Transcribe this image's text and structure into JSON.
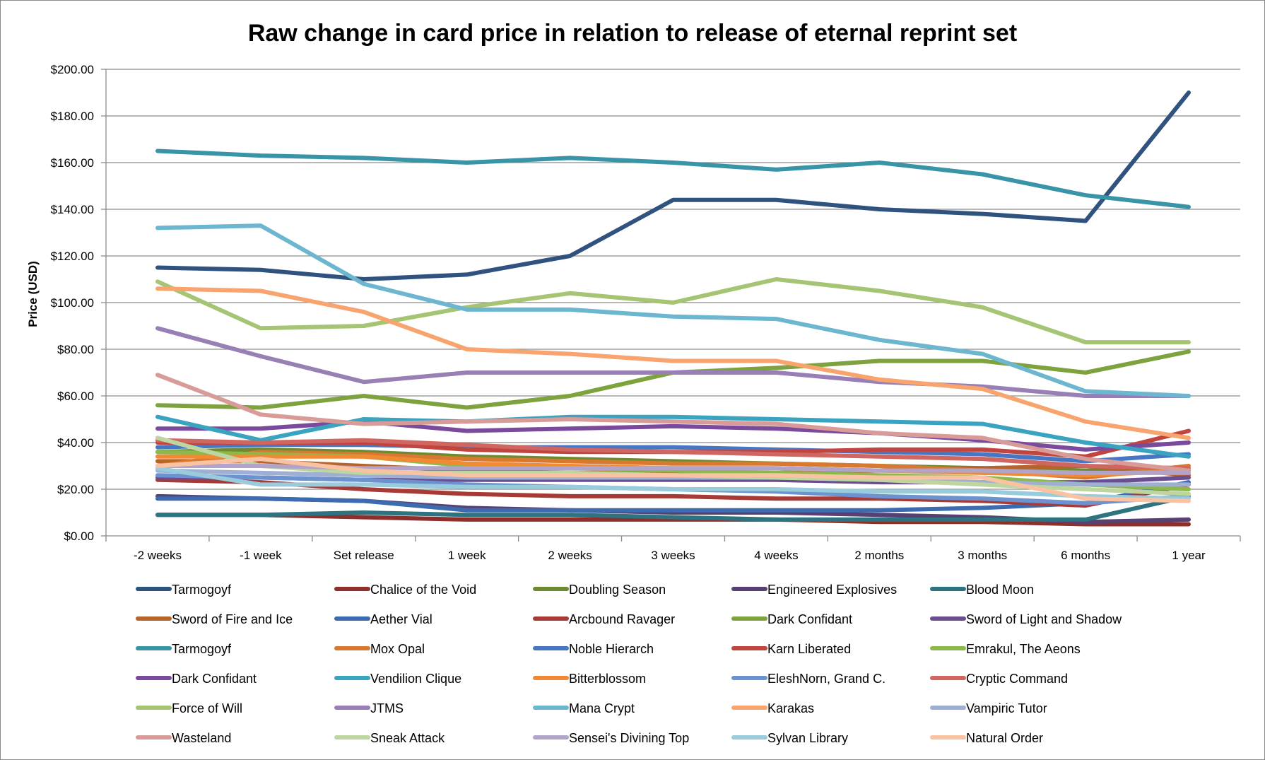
{
  "chart_data": {
    "type": "line",
    "title": "Raw change in card price in relation to release of eternal reprint set",
    "xlabel": "",
    "ylabel": "Price (USD)",
    "ylim": [
      0,
      200
    ],
    "y_ticks": [
      "$0.00",
      "$20.00",
      "$40.00",
      "$60.00",
      "$80.00",
      "$100.00",
      "$120.00",
      "$140.00",
      "$160.00",
      "$180.00",
      "$200.00"
    ],
    "grid": "horizontal",
    "legend_position": "bottom",
    "categories": [
      "-2 weeks",
      "-1 week",
      "Set release",
      "1 week",
      "2 weeks",
      "3 weeks",
      "4 weeks",
      "2 months",
      "3 months",
      "6 months",
      "1 year"
    ],
    "series": [
      {
        "name": "Tarmogoyf",
        "color": "#2f527f",
        "values": [
          115,
          114,
          110,
          112,
          120,
          144,
          144,
          140,
          138,
          135,
          190
        ]
      },
      {
        "name": "Chalice of the Void",
        "color": "#8e2f2c",
        "values": [
          9,
          9,
          8,
          7,
          7,
          7,
          7,
          6,
          6,
          5,
          5
        ]
      },
      {
        "name": "Doubling Season",
        "color": "#6e8a31",
        "values": [
          36,
          37,
          36,
          34,
          33,
          32,
          31,
          30,
          29,
          28,
          28
        ]
      },
      {
        "name": "Engineered Explosives",
        "color": "#574173",
        "values": [
          17,
          16,
          15,
          12,
          11,
          10,
          10,
          9,
          8,
          6,
          7
        ]
      },
      {
        "name": "Blood Moon",
        "color": "#2e7380",
        "values": [
          9,
          9,
          10,
          9,
          9,
          8,
          7,
          7,
          7,
          7,
          17
        ]
      },
      {
        "name": "Sword of Fire and Ice",
        "color": "#b5652b",
        "values": [
          32,
          32,
          30,
          28,
          27,
          27,
          27,
          28,
          29,
          30,
          26
        ]
      },
      {
        "name": "Aether Vial",
        "color": "#3d6bb0",
        "values": [
          16,
          16,
          15,
          11,
          11,
          11,
          11,
          11,
          12,
          14,
          23
        ]
      },
      {
        "name": "Arcbound Ravager",
        "color": "#a83a36",
        "values": [
          24,
          23,
          20,
          18,
          17,
          17,
          16,
          16,
          15,
          13,
          22
        ]
      },
      {
        "name": "Dark Confidant",
        "color": "#7ea23e",
        "values": [
          56,
          55,
          60,
          55,
          60,
          70,
          72,
          75,
          75,
          70,
          79
        ]
      },
      {
        "name": "Sword of Light and Shadow",
        "color": "#6b4e8f",
        "values": [
          25,
          25,
          24,
          24,
          24,
          24,
          24,
          23,
          23,
          23,
          25
        ]
      },
      {
        "name": "Tarmogoyf",
        "color": "#3894a6",
        "values": [
          165,
          163,
          162,
          160,
          162,
          160,
          157,
          160,
          155,
          146,
          141
        ]
      },
      {
        "name": "Mox Opal",
        "color": "#d97930",
        "values": [
          30,
          36,
          35,
          33,
          32,
          31,
          31,
          30,
          28,
          25,
          30
        ]
      },
      {
        "name": "Noble Hierarch",
        "color": "#4777c2",
        "values": [
          38,
          39,
          39,
          38,
          38,
          38,
          37,
          36,
          35,
          32,
          35
        ]
      },
      {
        "name": "Karn Liberated",
        "color": "#c2443f",
        "values": [
          40,
          40,
          40,
          37,
          36,
          36,
          36,
          37,
          37,
          34,
          45
        ]
      },
      {
        "name": "Emrakul, The Aeons",
        "color": "#8db94a",
        "values": [
          36,
          35,
          34,
          30,
          29,
          28,
          27,
          26,
          25,
          22,
          20
        ]
      },
      {
        "name": "Dark Confidant",
        "color": "#7a4a9c",
        "values": [
          46,
          46,
          49,
          45,
          46,
          47,
          46,
          44,
          41,
          37,
          40
        ]
      },
      {
        "name": "Vendilion Clique",
        "color": "#3aa4c0",
        "values": [
          51,
          41,
          50,
          49,
          51,
          51,
          50,
          49,
          48,
          40,
          34
        ]
      },
      {
        "name": "Bitterblossom",
        "color": "#f08a35",
        "values": [
          34,
          34,
          34,
          31,
          30,
          29,
          29,
          28,
          27,
          26,
          28
        ]
      },
      {
        "name": "EleshNorn, Grand C.",
        "color": "#6d92d0",
        "values": [
          26,
          25,
          24,
          22,
          21,
          20,
          19,
          17,
          16,
          14,
          17
        ]
      },
      {
        "name": "Cryptic Command",
        "color": "#cf6662",
        "values": [
          41,
          40,
          41,
          39,
          37,
          36,
          35,
          34,
          33,
          30,
          29
        ]
      },
      {
        "name": "Force of Will",
        "color": "#a5c474",
        "values": [
          109,
          89,
          90,
          98,
          104,
          100,
          110,
          105,
          98,
          83,
          83
        ]
      },
      {
        "name": "JTMS",
        "color": "#9880b6",
        "values": [
          89,
          77,
          66,
          70,
          70,
          70,
          70,
          66,
          64,
          60,
          60
        ]
      },
      {
        "name": "Mana Crypt",
        "color": "#6db6d0",
        "values": [
          132,
          133,
          108,
          97,
          97,
          94,
          93,
          84,
          78,
          62,
          60
        ]
      },
      {
        "name": "Karakas",
        "color": "#f7a46e",
        "values": [
          106,
          105,
          96,
          80,
          78,
          75,
          75,
          67,
          63,
          49,
          42
        ]
      },
      {
        "name": "Vampiric Tutor",
        "color": "#9db0d4",
        "values": [
          28,
          27,
          26,
          25,
          25,
          25,
          25,
          24,
          23,
          22,
          22
        ]
      },
      {
        "name": "Wasteland",
        "color": "#d89b98",
        "values": [
          69,
          52,
          48,
          49,
          50,
          49,
          48,
          44,
          42,
          33,
          28
        ]
      },
      {
        "name": "Sneak Attack",
        "color": "#bdd59f",
        "values": [
          42,
          30,
          27,
          27,
          27,
          26,
          25,
          24,
          22,
          20,
          18
        ]
      },
      {
        "name": "Sensei's Divining Top",
        "color": "#b2a4c9",
        "values": [
          30,
          30,
          29,
          29,
          29,
          29,
          29,
          28,
          28,
          27,
          27
        ]
      },
      {
        "name": "Sylvan Library",
        "color": "#98cbdb",
        "values": [
          29,
          22,
          22,
          21,
          21,
          20,
          20,
          19,
          19,
          17,
          16
        ]
      },
      {
        "name": "Natural Order",
        "color": "#f9c3a3",
        "values": [
          30,
          33,
          28,
          26,
          26,
          26,
          26,
          25,
          25,
          16,
          15
        ]
      }
    ]
  }
}
